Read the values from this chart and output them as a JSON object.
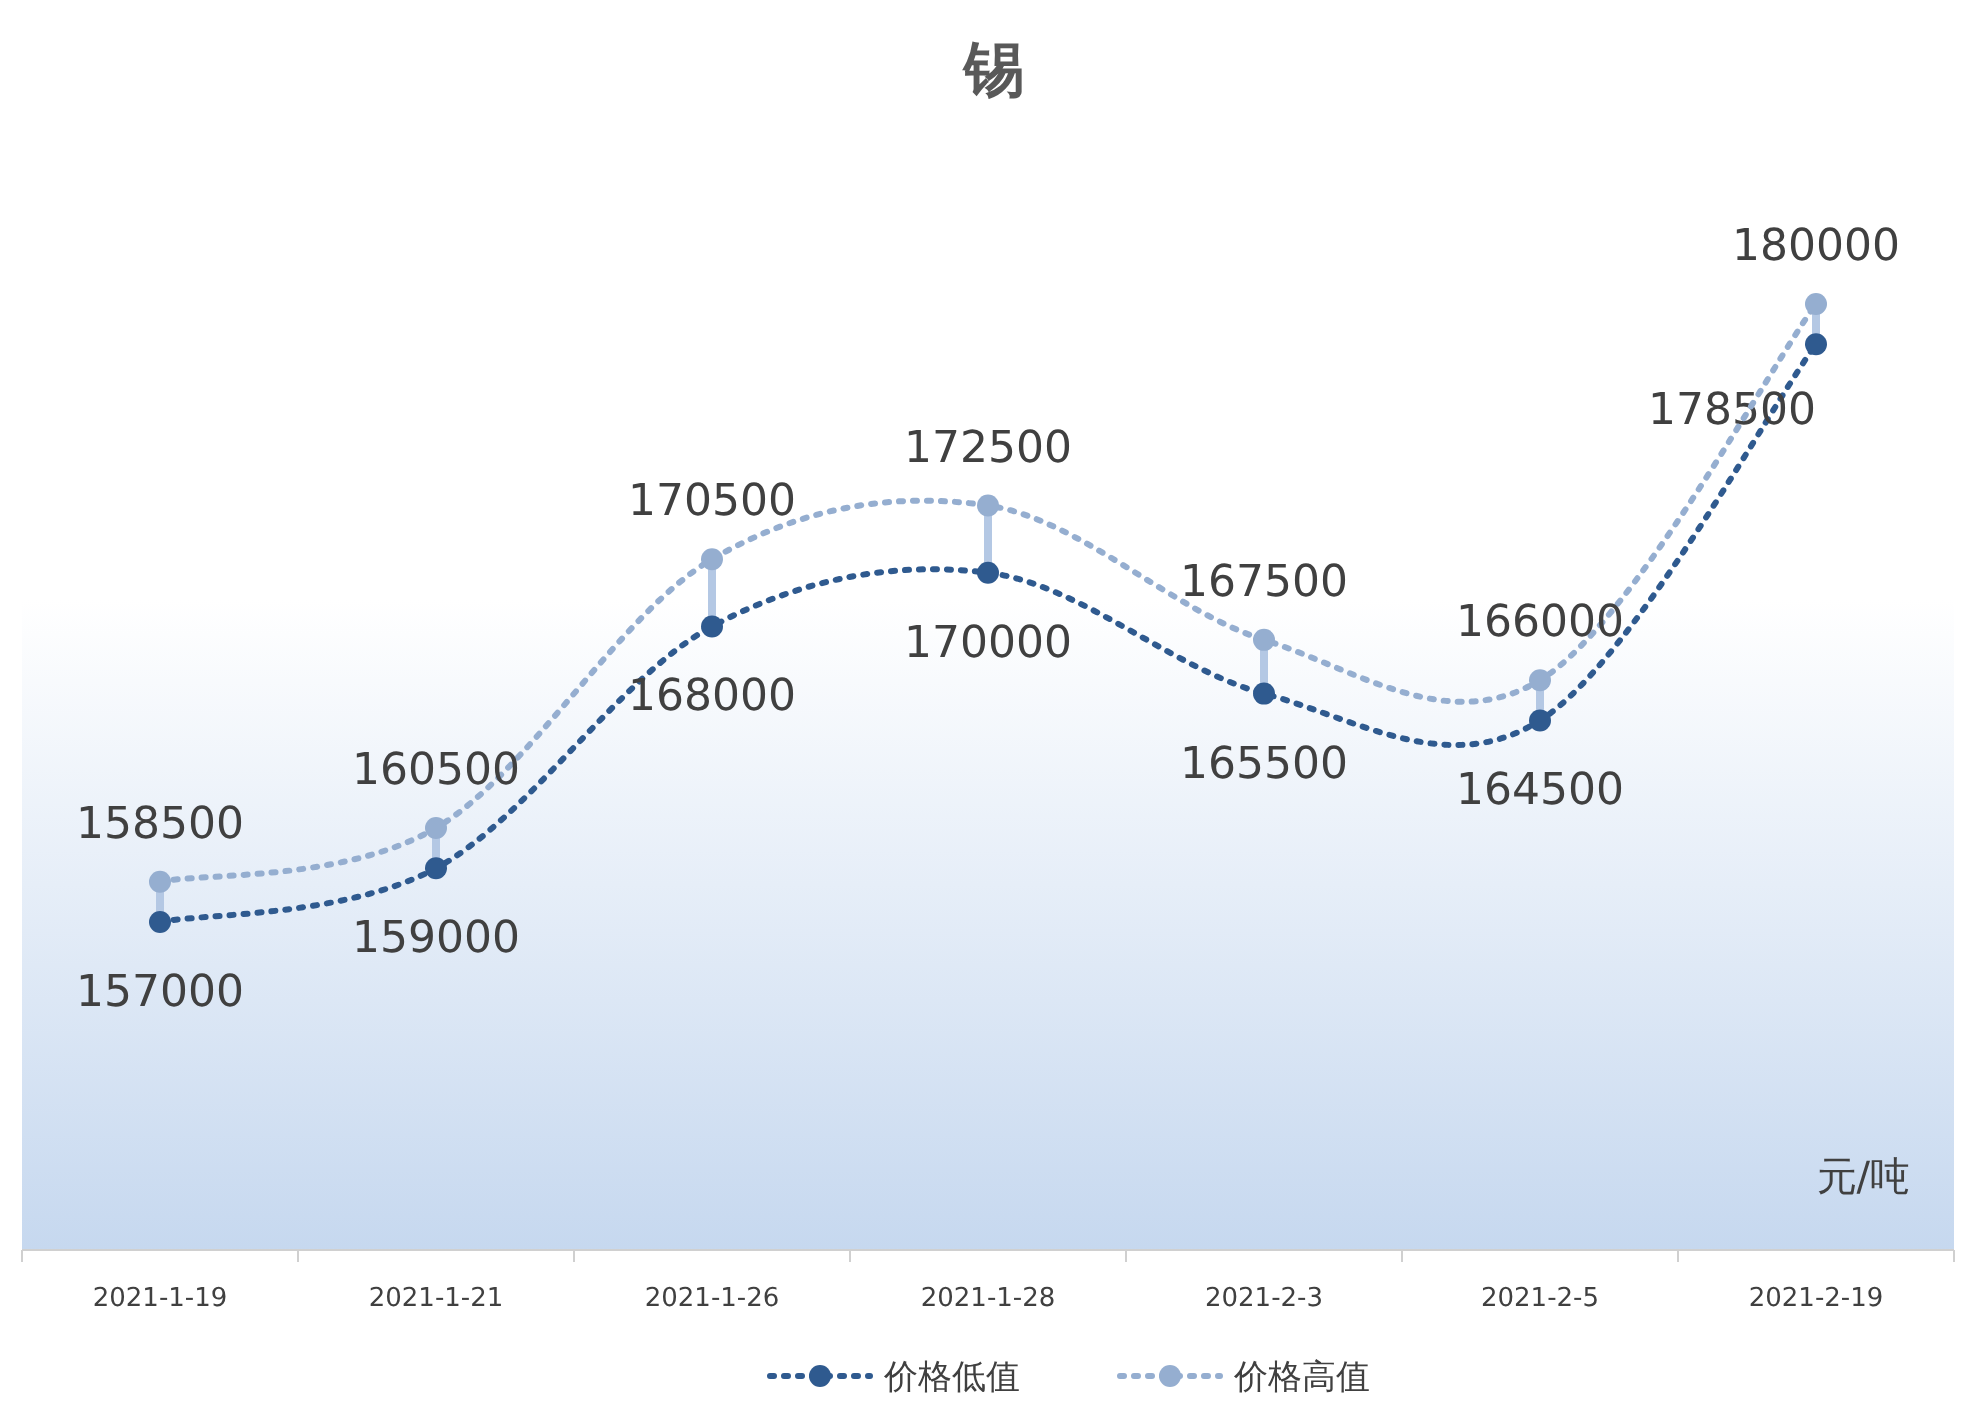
{
  "chart_data": {
    "type": "line",
    "title": "锡",
    "categories": [
      "2021-1-19",
      "2021-1-21",
      "2021-1-26",
      "2021-1-28",
      "2021-2-3",
      "2021-2-5",
      "2021-2-19"
    ],
    "series": [
      {
        "name": "价格低值",
        "color": "#2f5a8f",
        "values": [
          157000,
          159000,
          168000,
          170000,
          165500,
          164500,
          178500
        ]
      },
      {
        "name": "价格高值",
        "color": "#95aed0",
        "values": [
          158500,
          160500,
          170500,
          172500,
          167500,
          166000,
          180000
        ]
      }
    ],
    "data_labels": true,
    "marker": "circle",
    "line_style": "dotted",
    "legend": "bottom",
    "annotations": [
      "元/吨"
    ]
  }
}
